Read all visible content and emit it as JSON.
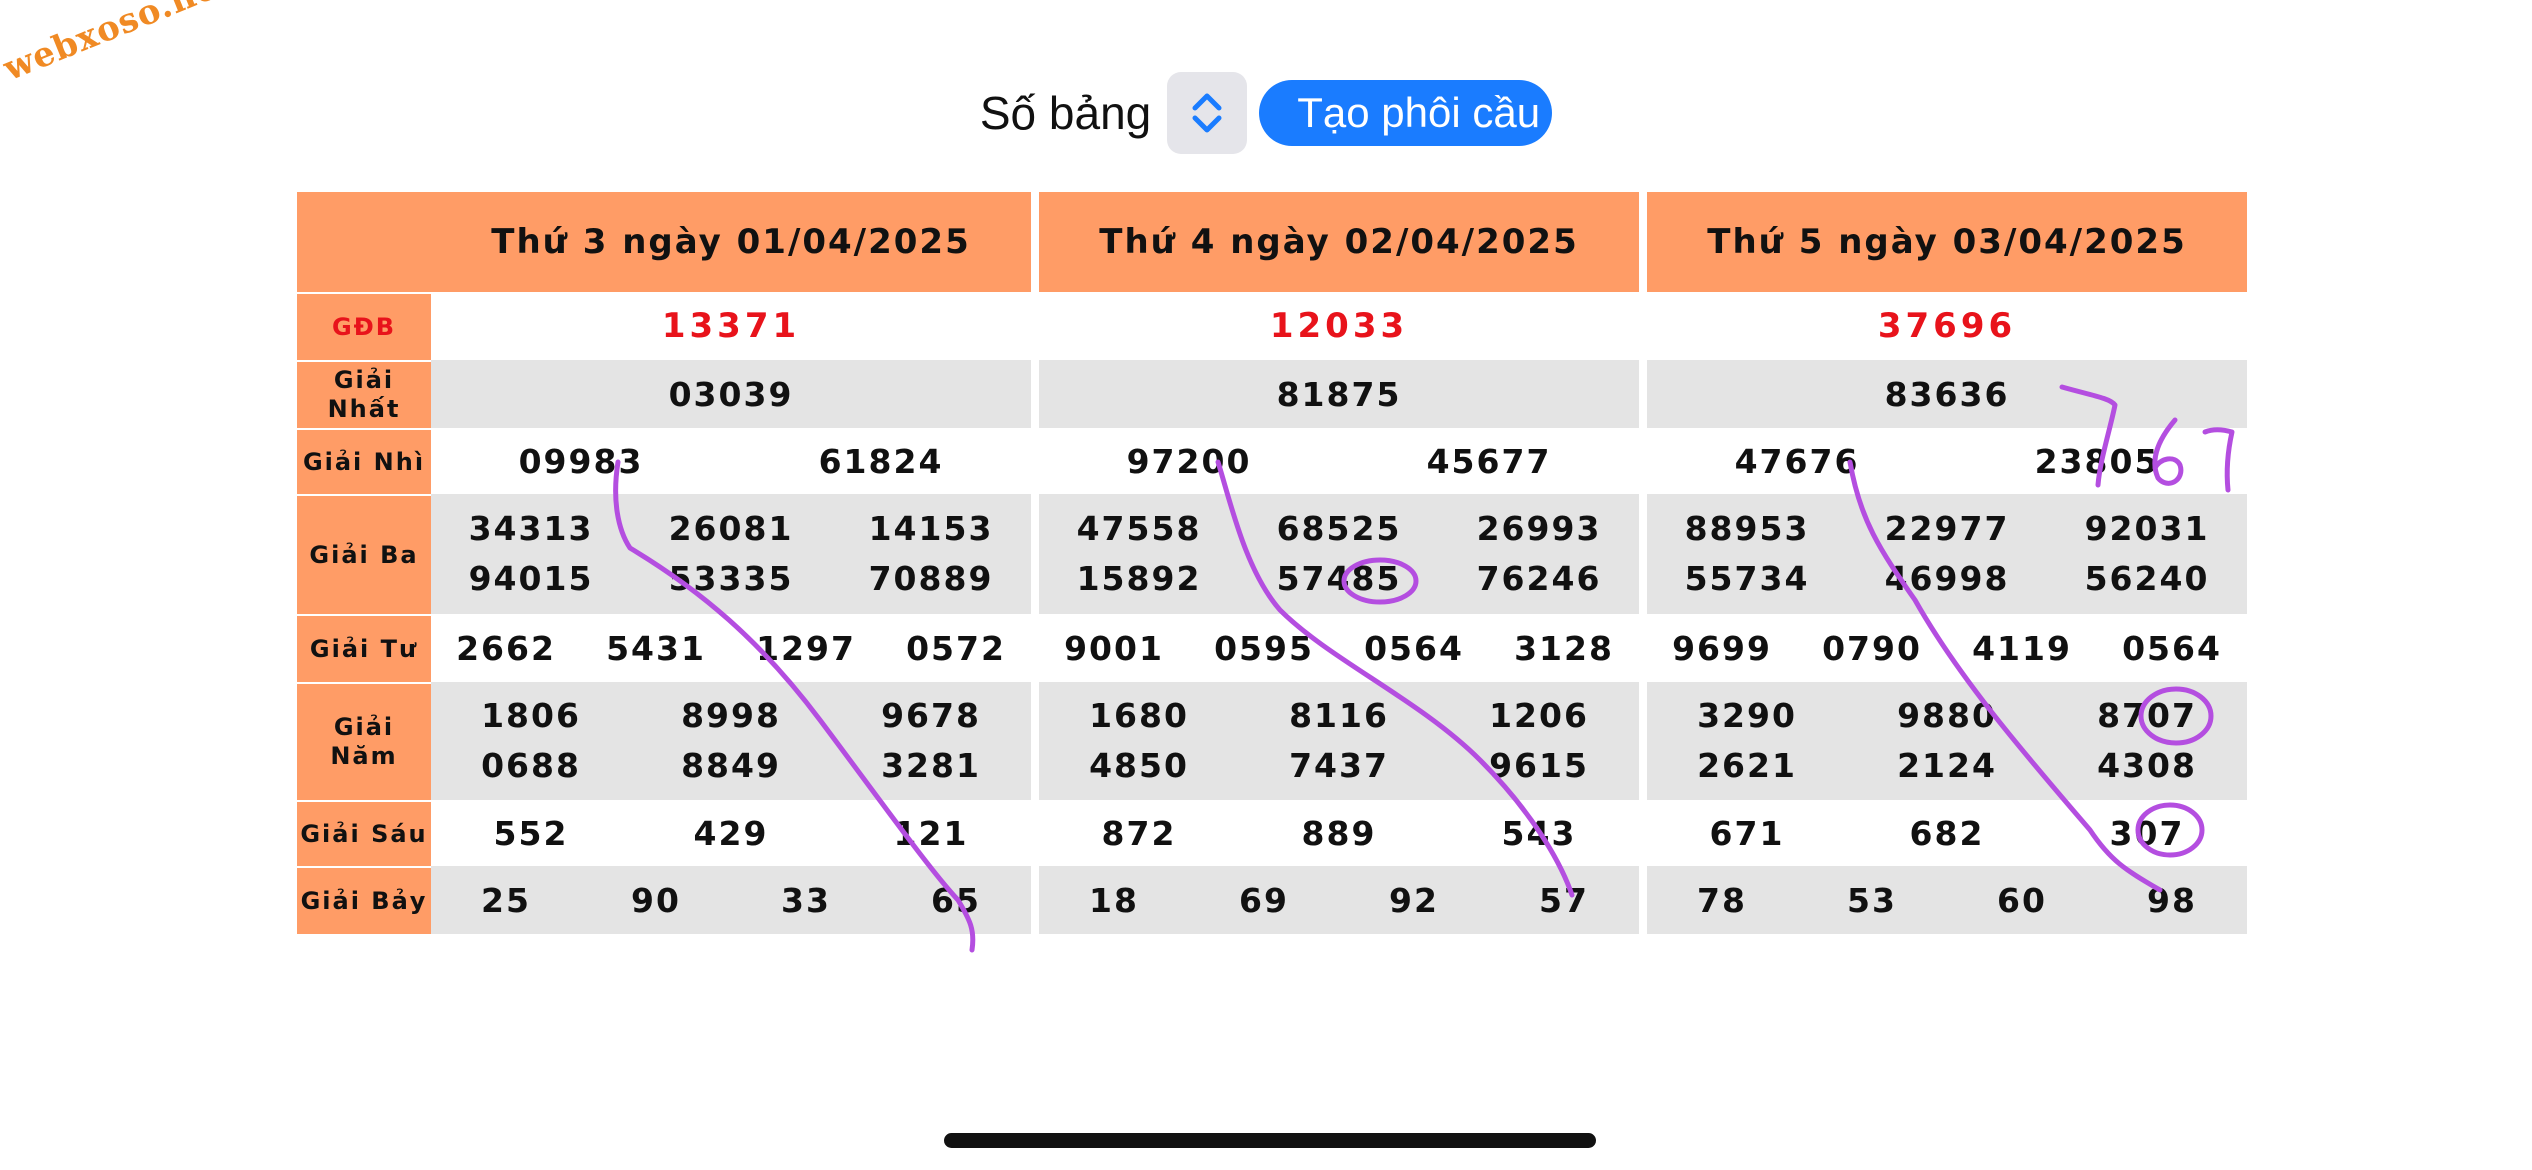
{
  "watermark": "webxoso.net",
  "toolbar": {
    "label": "Số bảng",
    "button": "Tạo phôi cầu"
  },
  "row_labels": {
    "gdb": "GĐB",
    "nhat_1": "Giải",
    "nhat_2": "Nhất",
    "nhi": "Giải Nhì",
    "ba": "Giải Ba",
    "tu": "Giải Tư",
    "nam": "Giải Năm",
    "sau": "Giải Sáu",
    "bay": "Giải Bảy"
  },
  "days": [
    {
      "title": "Thứ 3 ngày 01/04/2025",
      "gdb": "13371",
      "nhat": "03039",
      "nhi": [
        "09983",
        "61824"
      ],
      "ba": [
        "34313",
        "26081",
        "14153",
        "94015",
        "53335",
        "70889"
      ],
      "tu": [
        "2662",
        "5431",
        "1297",
        "0572"
      ],
      "nam": [
        "1806",
        "8998",
        "9678",
        "0688",
        "8849",
        "3281"
      ],
      "sau": [
        "552",
        "429",
        "121"
      ],
      "bay": [
        "25",
        "90",
        "33",
        "65"
      ]
    },
    {
      "title": "Thứ 4 ngày 02/04/2025",
      "gdb": "12033",
      "nhat": "81875",
      "nhi": [
        "97200",
        "45677"
      ],
      "ba": [
        "47558",
        "68525",
        "26993",
        "15892",
        "57485",
        "76246"
      ],
      "tu": [
        "9001",
        "0595",
        "0564",
        "3128"
      ],
      "nam": [
        "1680",
        "8116",
        "1206",
        "4850",
        "7437",
        "9615"
      ],
      "sau": [
        "872",
        "889",
        "543"
      ],
      "bay": [
        "18",
        "69",
        "92",
        "57"
      ]
    },
    {
      "title": "Thứ 5 ngày 03/04/2025",
      "gdb": "37696",
      "nhat": "83636",
      "nhi": [
        "47676",
        "23805"
      ],
      "ba": [
        "88953",
        "22977",
        "92031",
        "55734",
        "46998",
        "56240"
      ],
      "tu": [
        "9699",
        "0790",
        "4119",
        "0564"
      ],
      "nam": [
        "3290",
        "9880",
        "8707",
        "2621",
        "2124",
        "4308"
      ],
      "sau": [
        "671",
        "682",
        "307"
      ],
      "bay": [
        "78",
        "53",
        "60",
        "98"
      ]
    }
  ],
  "annotation": {
    "handwritten_text": "767",
    "ink_color": "#b44ee0"
  },
  "colors": {
    "header_bg": "#ff9c66",
    "special_prize": "#e8131b",
    "button": "#1a7cff",
    "row_alt": "#e4e4e4"
  }
}
